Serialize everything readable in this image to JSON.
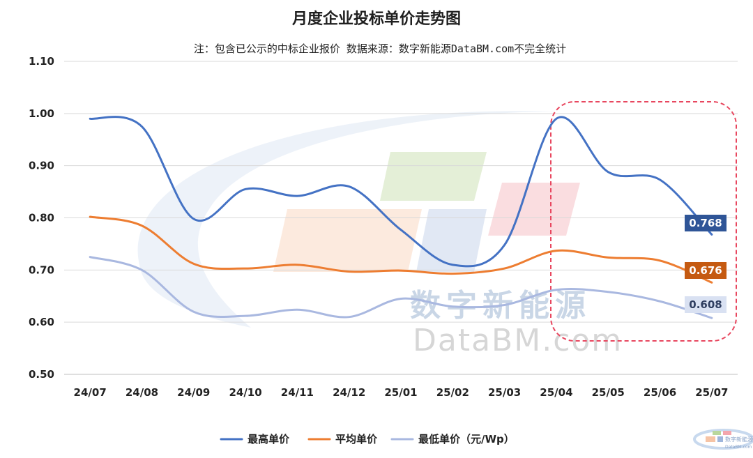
{
  "chart_data": {
    "type": "line",
    "title": "月度企业投标单价走势图",
    "subtitle": "注：包含已公示的中标企业报价 数据来源：数字新能源DataBM.com不完全统计",
    "categories": [
      "24/07",
      "24/08",
      "24/09",
      "24/10",
      "24/11",
      "24/12",
      "25/01",
      "25/02",
      "25/03",
      "25/04",
      "25/05",
      "25/06",
      "25/07"
    ],
    "ylim": [
      0.5,
      1.1
    ],
    "yticks": [
      "1.10",
      "1.00",
      "0.90",
      "0.80",
      "0.70",
      "0.60",
      "0.50"
    ],
    "grid": true,
    "legend_position": "bottom",
    "series": [
      {
        "name": "最高单价",
        "color": "#4472c4",
        "values": [
          0.99,
          0.975,
          0.798,
          0.855,
          0.842,
          0.86,
          0.777,
          0.71,
          0.748,
          0.99,
          0.888,
          0.873,
          0.768
        ],
        "end_label": "0.768"
      },
      {
        "name": "平均单价",
        "color": "#ed7d31",
        "values": [
          0.802,
          0.785,
          0.712,
          0.703,
          0.71,
          0.697,
          0.699,
          0.693,
          0.703,
          0.737,
          0.724,
          0.718,
          0.676
        ],
        "end_label": "0.676"
      },
      {
        "name": "最低单价（元/Wp）",
        "color": "#a9b8e0",
        "values": [
          0.725,
          0.7,
          0.62,
          0.612,
          0.624,
          0.61,
          0.645,
          0.63,
          0.633,
          0.662,
          0.658,
          0.64,
          0.608
        ],
        "end_label": "0.608"
      }
    ]
  },
  "watermark": {
    "cn": "数字新能源",
    "en": "DataBM.com"
  },
  "corner_logo": {
    "text": "数字新能源",
    "subtext": "DataBM.com"
  },
  "highlight_box_color": "#e8475f"
}
